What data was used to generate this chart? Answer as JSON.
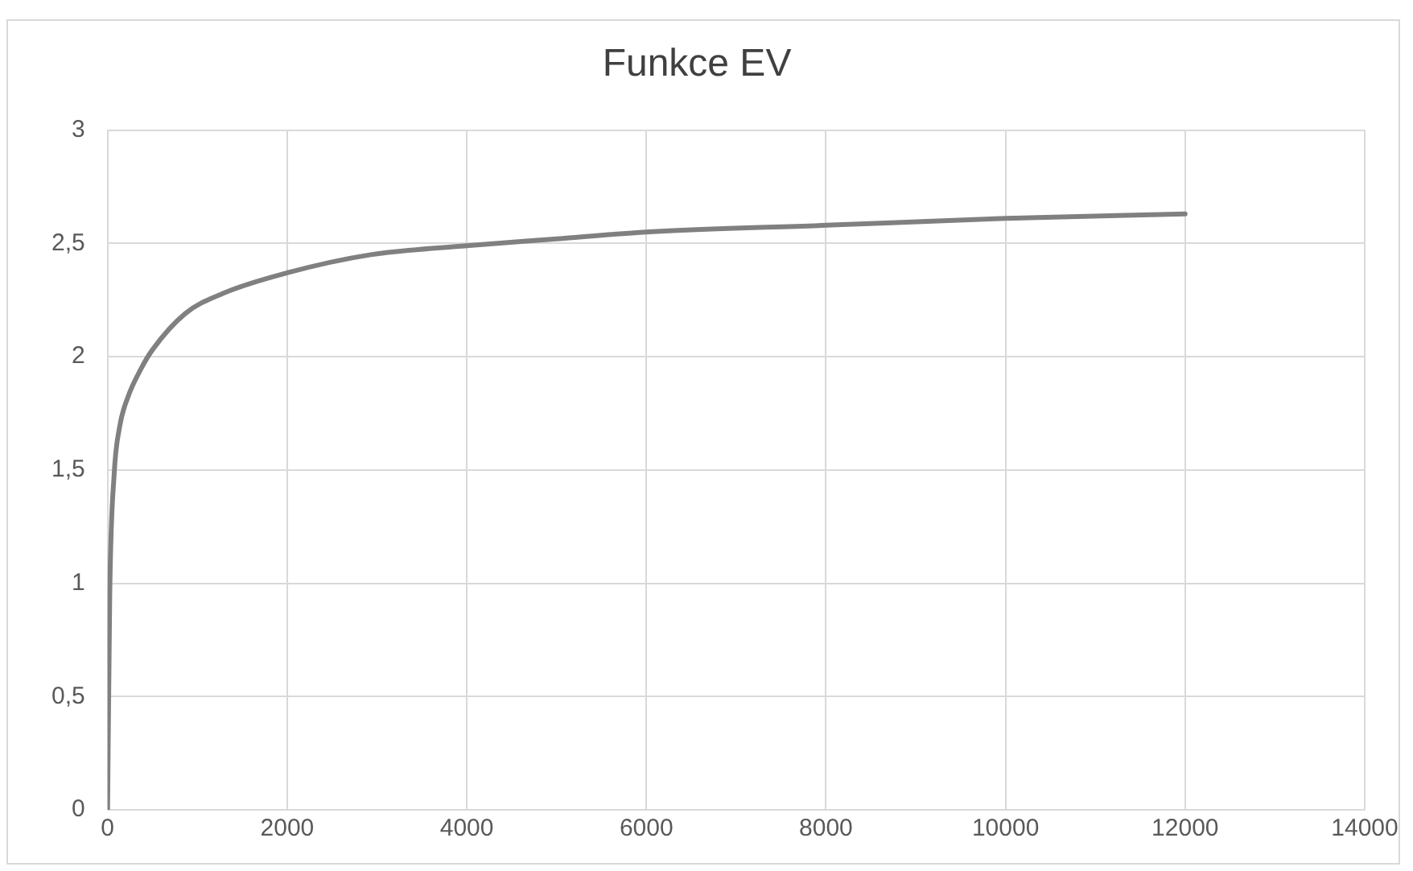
{
  "chart_data": {
    "type": "line",
    "title": "Funkce EV",
    "x": [
      0,
      24,
      73,
      134,
      225,
      377,
      499,
      864,
      1290,
      2000,
      2932,
      4000,
      5000,
      6000,
      8000,
      10000,
      12000
    ],
    "series": [
      {
        "color": "#808080",
        "values": [
          0,
          0.95,
          1.48,
          1.69,
          1.82,
          1.95,
          2.03,
          2.19,
          2.28,
          2.37,
          2.45,
          2.49,
          2.52,
          2.55,
          2.58,
          2.61,
          2.63
        ]
      }
    ],
    "xlim": [
      0,
      14000
    ],
    "xticks": [
      0,
      2000,
      4000,
      6000,
      8000,
      10000,
      12000,
      14000
    ],
    "ylim": [
      0,
      3
    ],
    "yticks": [
      0,
      {
        "value": 0.5,
        "label": "0,5"
      },
      1,
      {
        "value": 1.5,
        "label": "1,5"
      },
      2,
      {
        "value": 2.5,
        "label": "2,5"
      },
      3
    ],
    "grid": true,
    "legend": false,
    "marker": "none",
    "line_style": "solid"
  }
}
